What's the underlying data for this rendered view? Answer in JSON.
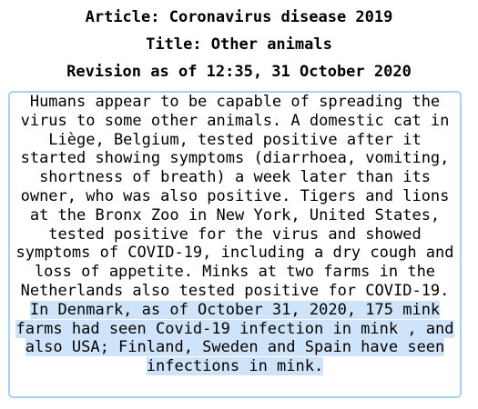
{
  "header": {
    "article": "Article: Coronavirus disease 2019",
    "title": "Title: Other animals",
    "revision": "Revision as of 12:35, 31 October 2020"
  },
  "content": {
    "text_plain": "Humans appear to be capable of spreading the virus to some other animals. A domestic cat in Liège, Belgium, tested positive after it started showing symptoms (diarrhoea, vomiting, shortness of breath) a week later than its owner, who was also positive. Tigers and lions at the Bronx Zoo in New York, United States, tested positive for the virus and showed symptoms of COVID-19, including a dry cough and loss of appetite. Minks at two farms in the Netherlands also tested positive for COVID-19.",
    "text_highlighted": " In Denmark, as of October 31, 2020, 175 mink farms had seen Covid-19 infection in mink , and also USA; Finland, Sweden and Spain have seen infections in mink."
  },
  "colors": {
    "highlight": "#cfe4fb",
    "border": "#a9d0f5"
  }
}
